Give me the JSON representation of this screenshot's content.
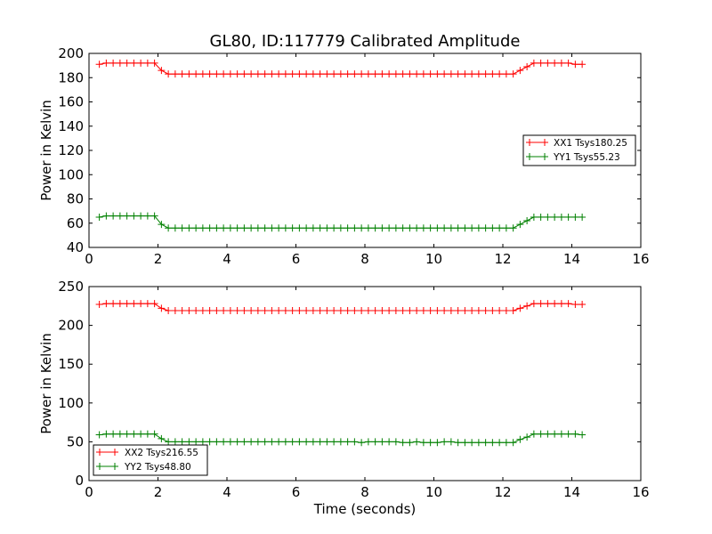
{
  "chart_data": [
    {
      "type": "line",
      "title": "GL80, ID:117779 Calibrated Amplitude",
      "xlabel": "",
      "ylabel": "Power in Kelvin",
      "xlim": [
        0,
        16
      ],
      "ylim": [
        40,
        200
      ],
      "xticks": [
        0,
        2,
        4,
        6,
        8,
        10,
        12,
        14,
        16
      ],
      "yticks": [
        40,
        60,
        80,
        100,
        120,
        140,
        160,
        180,
        200
      ],
      "legend_position": "center-right",
      "grid": false,
      "x": [
        0.3,
        0.5,
        0.7,
        0.9,
        1.1,
        1.3,
        1.5,
        1.7,
        1.9,
        2.1,
        2.3,
        2.5,
        2.7,
        2.9,
        3.1,
        3.3,
        3.5,
        3.7,
        3.9,
        4.1,
        4.3,
        4.5,
        4.7,
        4.9,
        5.1,
        5.3,
        5.5,
        5.7,
        5.9,
        6.1,
        6.3,
        6.5,
        6.7,
        6.9,
        7.1,
        7.3,
        7.5,
        7.7,
        7.9,
        8.1,
        8.3,
        8.5,
        8.7,
        8.9,
        9.1,
        9.3,
        9.5,
        9.7,
        9.9,
        10.1,
        10.3,
        10.5,
        10.7,
        10.9,
        11.1,
        11.3,
        11.5,
        11.7,
        11.9,
        12.1,
        12.3,
        12.5,
        12.7,
        12.9,
        13.1,
        13.3,
        13.5,
        13.7,
        13.9,
        14.1,
        14.3
      ],
      "series": [
        {
          "name": "XX1 Tsys180.25",
          "color": "#ff0000",
          "values": [
            191,
            192,
            192,
            192,
            192,
            192,
            192,
            192,
            192,
            186,
            183,
            183,
            183,
            183,
            183,
            183,
            183,
            183,
            183,
            183,
            183,
            183,
            183,
            183,
            183,
            183,
            183,
            183,
            183,
            183,
            183,
            183,
            183,
            183,
            183,
            183,
            183,
            183,
            183,
            183,
            183,
            183,
            183,
            183,
            183,
            183,
            183,
            183,
            183,
            183,
            183,
            183,
            183,
            183,
            183,
            183,
            183,
            183,
            183,
            183,
            183,
            186,
            189,
            192,
            192,
            192,
            192,
            192,
            192,
            191,
            191
          ]
        },
        {
          "name": "YY1 Tsys55.23",
          "color": "#008000",
          "values": [
            65,
            66,
            66,
            66,
            66,
            66,
            66,
            66,
            66,
            59,
            56,
            56,
            56,
            56,
            56,
            56,
            56,
            56,
            56,
            56,
            56,
            56,
            56,
            56,
            56,
            56,
            56,
            56,
            56,
            56,
            56,
            56,
            56,
            56,
            56,
            56,
            56,
            56,
            56,
            56,
            56,
            56,
            56,
            56,
            56,
            56,
            56,
            56,
            56,
            56,
            56,
            56,
            56,
            56,
            56,
            56,
            56,
            56,
            56,
            56,
            56,
            59,
            62,
            65,
            65,
            65,
            65,
            65,
            65,
            65,
            65
          ]
        }
      ]
    },
    {
      "type": "line",
      "title": "",
      "xlabel": "Time (seconds)",
      "ylabel": "Power in Kelvin",
      "xlim": [
        0,
        16
      ],
      "ylim": [
        0,
        250
      ],
      "xticks": [
        0,
        2,
        4,
        6,
        8,
        10,
        12,
        14,
        16
      ],
      "yticks": [
        0,
        50,
        100,
        150,
        200,
        250
      ],
      "legend_position": "lower-left",
      "grid": false,
      "x": [
        0.3,
        0.5,
        0.7,
        0.9,
        1.1,
        1.3,
        1.5,
        1.7,
        1.9,
        2.1,
        2.3,
        2.5,
        2.7,
        2.9,
        3.1,
        3.3,
        3.5,
        3.7,
        3.9,
        4.1,
        4.3,
        4.5,
        4.7,
        4.9,
        5.1,
        5.3,
        5.5,
        5.7,
        5.9,
        6.1,
        6.3,
        6.5,
        6.7,
        6.9,
        7.1,
        7.3,
        7.5,
        7.7,
        7.9,
        8.1,
        8.3,
        8.5,
        8.7,
        8.9,
        9.1,
        9.3,
        9.5,
        9.7,
        9.9,
        10.1,
        10.3,
        10.5,
        10.7,
        10.9,
        11.1,
        11.3,
        11.5,
        11.7,
        11.9,
        12.1,
        12.3,
        12.5,
        12.7,
        12.9,
        13.1,
        13.3,
        13.5,
        13.7,
        13.9,
        14.1,
        14.3
      ],
      "series": [
        {
          "name": "XX2 Tsys216.55",
          "color": "#ff0000",
          "values": [
            227,
            228,
            228,
            228,
            228,
            228,
            228,
            228,
            228,
            222,
            219,
            219,
            219,
            219,
            219,
            219,
            219,
            219,
            219,
            219,
            219,
            219,
            219,
            219,
            219,
            219,
            219,
            219,
            219,
            219,
            219,
            219,
            219,
            219,
            219,
            219,
            219,
            219,
            219,
            219,
            219,
            219,
            219,
            219,
            219,
            219,
            219,
            219,
            219,
            219,
            219,
            219,
            219,
            219,
            219,
            219,
            219,
            219,
            219,
            219,
            219,
            222,
            225,
            228,
            228,
            228,
            228,
            228,
            228,
            227,
            227
          ]
        },
        {
          "name": "YY2 Tsys48.80",
          "color": "#008000",
          "values": [
            59,
            60,
            60,
            60,
            60,
            60,
            60,
            60,
            60,
            54,
            50,
            50,
            50,
            50,
            50,
            50,
            50,
            50,
            50,
            50,
            50,
            50,
            50,
            50,
            50,
            50,
            50,
            50,
            50,
            50,
            50,
            50,
            50,
            50,
            50,
            50,
            50,
            50,
            49,
            50,
            50,
            50,
            50,
            50,
            49,
            49,
            50,
            49,
            49,
            49,
            50,
            50,
            49,
            49,
            49,
            49,
            49,
            49,
            49,
            49,
            49,
            53,
            56,
            60,
            60,
            60,
            60,
            60,
            60,
            60,
            59
          ]
        }
      ]
    }
  ]
}
